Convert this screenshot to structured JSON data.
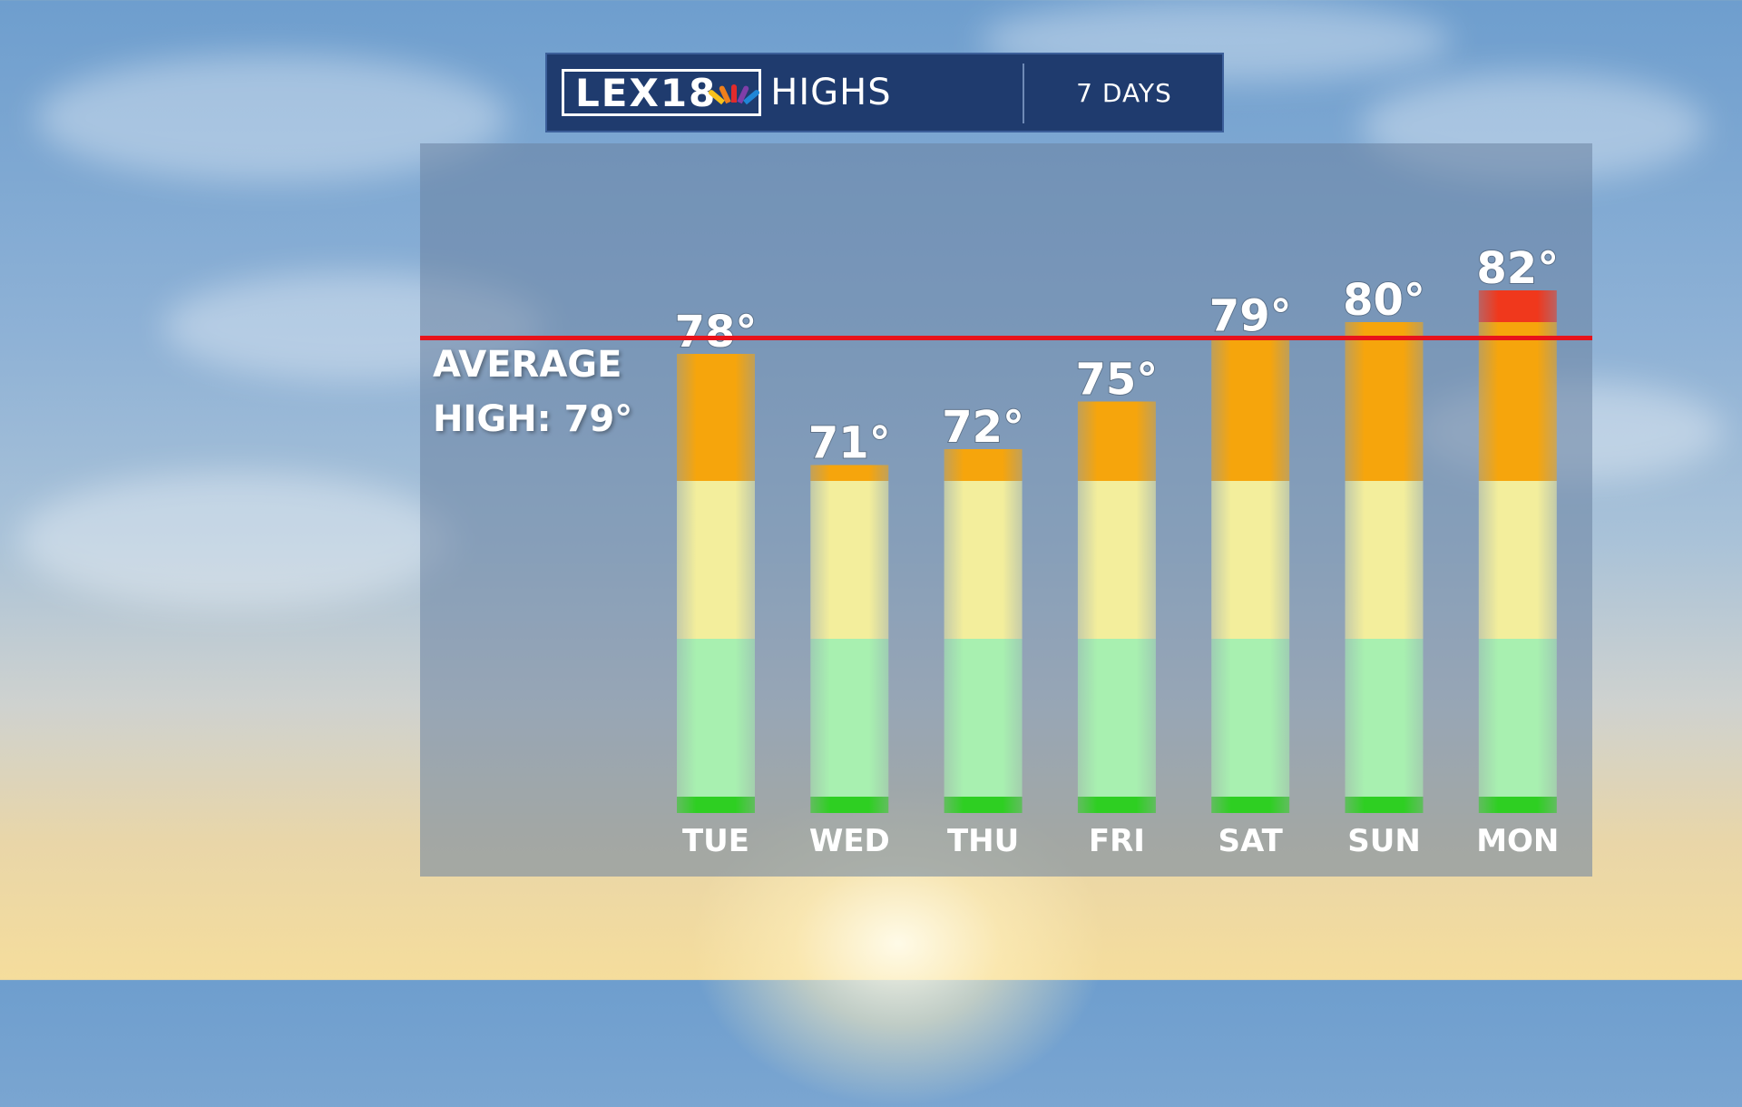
{
  "header": {
    "logo_text": "LEX18",
    "title": "HIGHS",
    "days_label": "7 DAYS"
  },
  "average": {
    "line1": "AVERAGE",
    "line2": "HIGH: 79°",
    "value": 79,
    "color": "#e8121a"
  },
  "colors": {
    "band_green_base": "#2ecf22",
    "band_green": "#a8f0b0",
    "band_yellow": "#f3ee9c",
    "band_orange": "#f6a50c",
    "band_red": "#f0381c"
  },
  "chart_data": {
    "type": "bar",
    "categories": [
      "TUE",
      "WED",
      "THU",
      "FRI",
      "SAT",
      "SUN",
      "MON"
    ],
    "values": [
      78,
      71,
      72,
      75,
      79,
      80,
      82
    ],
    "value_labels": [
      "78°",
      "71°",
      "72°",
      "75°",
      "79°",
      "80°",
      "82°"
    ],
    "title": "HIGHS",
    "reference_line": {
      "label": "AVERAGE HIGH: 79°",
      "value": 79
    },
    "color_bands": [
      {
        "from": 0,
        "to": 50,
        "color": "green"
      },
      {
        "from": 50,
        "to": 60,
        "color": "yellow"
      },
      {
        "from": 60,
        "to": 70,
        "color": "orange"
      },
      {
        "from": 70,
        "to": 80,
        "color": "orange"
      },
      {
        "from": 80,
        "to": 100,
        "color": "red"
      }
    ],
    "grid": false,
    "legend": "none"
  }
}
